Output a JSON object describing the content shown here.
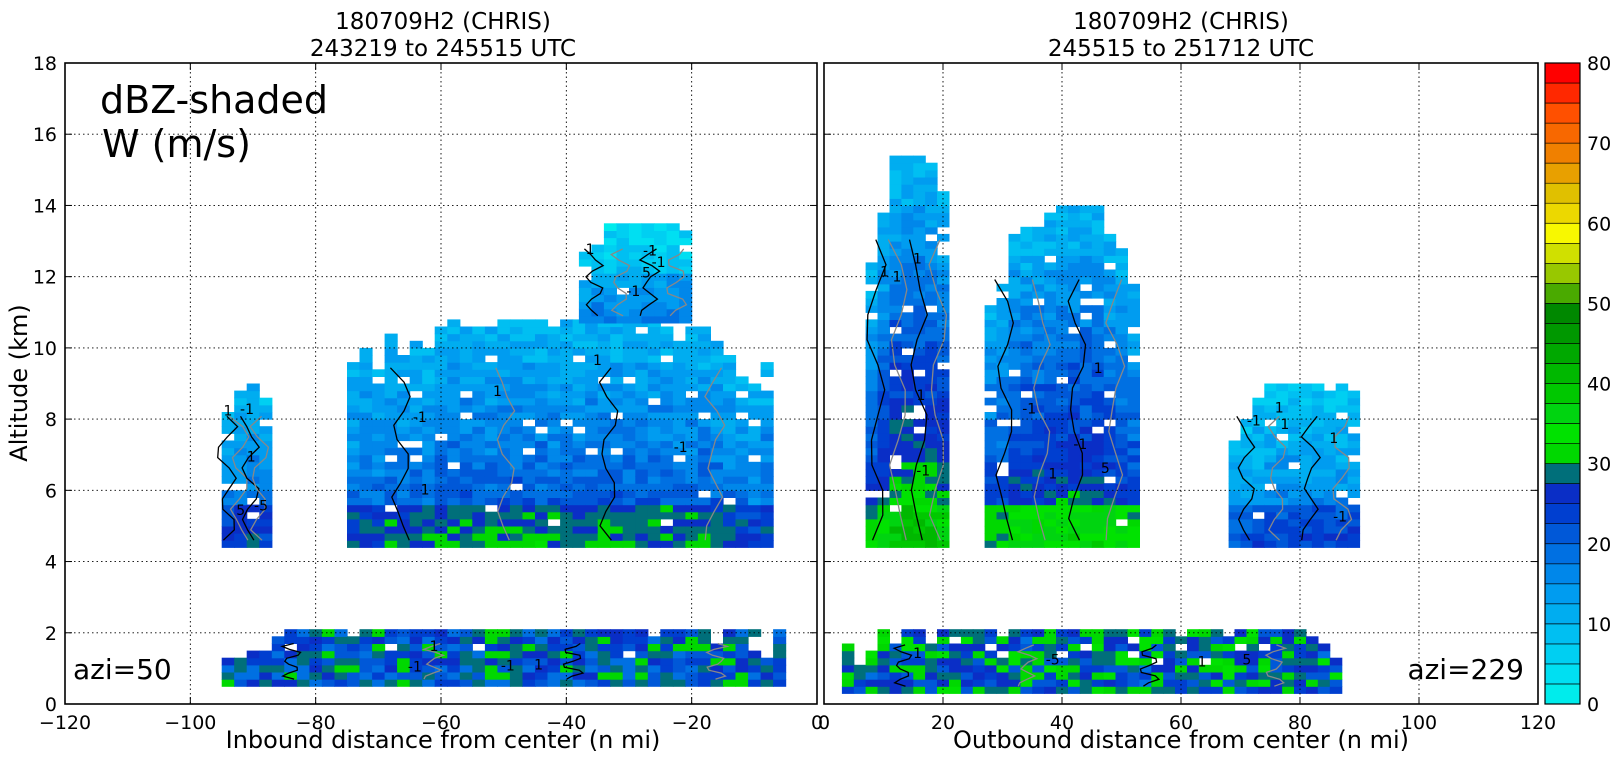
{
  "chart_data": [
    {
      "type": "heatmap",
      "title": "180709H2 (CHRIS)",
      "subtitle": "243219 to 245515 UTC",
      "xlabel": "Inbound distance from center (n mi)",
      "ylabel": "Altitude (km)",
      "xlim": [
        -120,
        0
      ],
      "ylim": [
        0,
        18
      ],
      "xticks": [
        -120,
        -100,
        -80,
        -60,
        -40,
        -20,
        0
      ],
      "yticks": [
        0,
        2,
        4,
        6,
        8,
        10,
        12,
        14,
        16,
        18
      ],
      "grid": true,
      "annotations": [
        "dBZ-shaded",
        "W (m/s)",
        "azi=50"
      ],
      "contour_labels": [
        "-1",
        "1",
        "-1",
        "-1",
        "1",
        "1",
        "-1",
        "-1",
        "5",
        "1",
        "-1",
        "1",
        "-5",
        "-1",
        "1",
        "1",
        "1",
        "-1",
        "5"
      ],
      "echo_regions": [
        {
          "x": [
            -95,
            -88
          ],
          "y": [
            4.4,
            9.0
          ],
          "base_dbz": 10
        },
        {
          "x": [
            -75,
            -8
          ],
          "y": [
            4.4,
            10.7
          ],
          "base_dbz": 10
        },
        {
          "x": [
            -38,
            -20
          ],
          "y": [
            10.7,
            13.3
          ],
          "base_dbz": 5
        },
        {
          "x": [
            -95,
            -5
          ],
          "y": [
            0.5,
            2.0
          ],
          "base_dbz": 22
        }
      ]
    },
    {
      "type": "heatmap",
      "title": "180709H2 (CHRIS)",
      "subtitle": "245515 to 251712 UTC",
      "xlabel": "Outbound distance from center (n mi)",
      "ylabel": "",
      "xlim": [
        0,
        120
      ],
      "ylim": [
        0,
        18
      ],
      "xticks": [
        0,
        20,
        40,
        60,
        80,
        100,
        120
      ],
      "yticks": [
        0,
        2,
        4,
        6,
        8,
        10,
        12,
        14,
        16,
        18
      ],
      "grid": true,
      "annotations": [
        "azi=229"
      ],
      "contour_labels": [
        "1",
        "1",
        "-1",
        "-5",
        "1",
        "-1",
        "-1",
        "1",
        "-1",
        "1",
        "1",
        "5",
        "1",
        "-1",
        "1",
        "1",
        "1",
        "5",
        "1"
      ],
      "echo_regions": [
        {
          "x": [
            7,
            21
          ],
          "y": [
            4.4,
            15.2
          ],
          "base_dbz": 10
        },
        {
          "x": [
            27,
            52
          ],
          "y": [
            4.4,
            13.8
          ],
          "base_dbz": 10
        },
        {
          "x": [
            68,
            90
          ],
          "y": [
            4.4,
            9.0
          ],
          "base_dbz": 8
        },
        {
          "x": [
            3,
            86
          ],
          "y": [
            0.3,
            2.0
          ],
          "base_dbz": 24
        }
      ]
    },
    {
      "type": "colorbar",
      "ticks": [
        0,
        10,
        20,
        30,
        40,
        50,
        60,
        70,
        80
      ],
      "range": [
        0,
        80
      ],
      "step": 2.5,
      "colors": [
        "#00ecec",
        "#00dff2",
        "#00cff2",
        "#00bff2",
        "#00adf0",
        "#009cf0",
        "#0087ea",
        "#0070e2",
        "#0058d8",
        "#003fd0",
        "#0a2ec6",
        "#006f7a",
        "#00d800",
        "#00e200",
        "#00d410",
        "#00c800",
        "#00b800",
        "#00a800",
        "#009800",
        "#008800",
        "#4aaa00",
        "#98c800",
        "#d0e000",
        "#f8f800",
        "#ecd800",
        "#e0c000",
        "#e8a000",
        "#f08000",
        "#f86800",
        "#ff5000",
        "#ff2800",
        "#ff0000",
        "#e80000",
        "#d00000",
        "#b80010",
        "#d0006e",
        "#ee00b8",
        "#ee00ee",
        "#c040dd",
        "#a050cc",
        "#8040a8",
        "#402050",
        "#000000"
      ]
    }
  ]
}
